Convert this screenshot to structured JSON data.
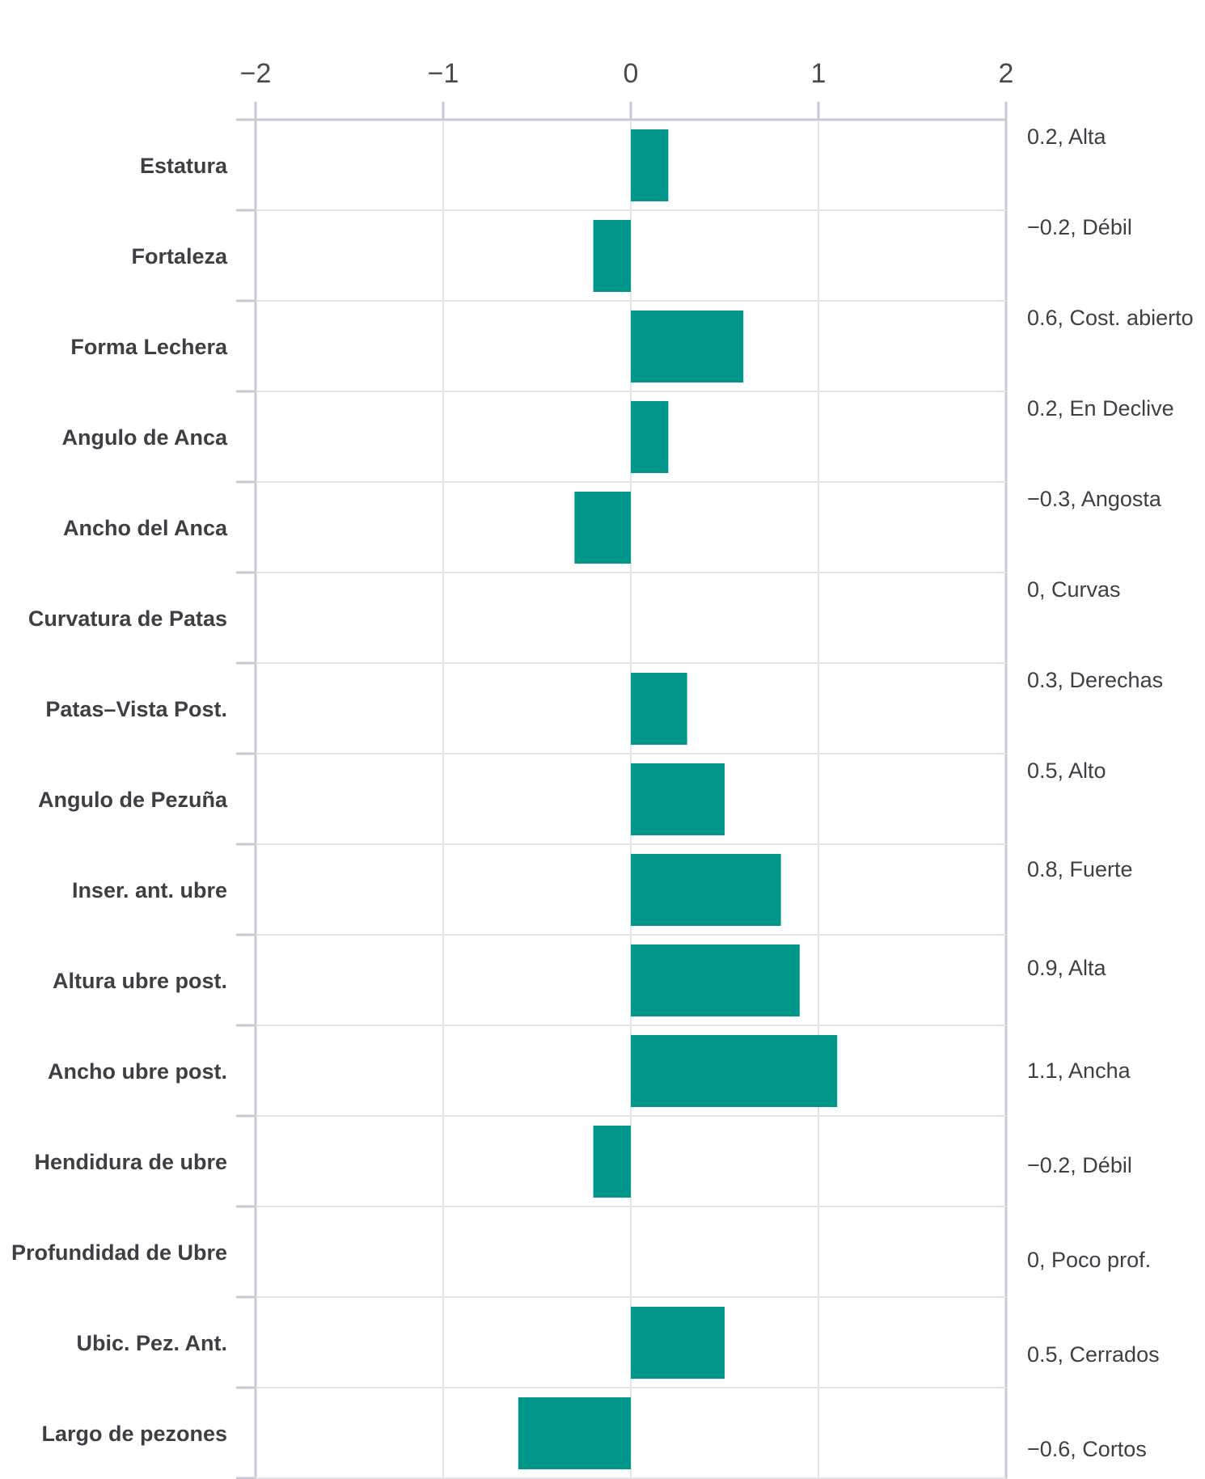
{
  "chart_data": {
    "type": "bar",
    "orientation": "horizontal",
    "title": "",
    "xlabel": "",
    "ylabel": "",
    "xlim": [
      -2,
      2
    ],
    "xticks": [
      -2,
      -1,
      0,
      1,
      2
    ],
    "xtick_labels": [
      "−2",
      "−1",
      "0",
      "1",
      "2"
    ],
    "grid": true,
    "bar_color": "#00968a",
    "categories": [
      "Estatura",
      "Fortaleza",
      "Forma Lechera",
      "Angulo de Anca",
      "Ancho del Anca",
      "Curvatura de Patas",
      "Patas–Vista Post.",
      "Angulo de Pezuña",
      "Inser. ant. ubre",
      "Altura ubre post.",
      "Ancho ubre post.",
      "Hendidura de ubre",
      "Profundidad de Ubre",
      "Ubic. Pez. Ant.",
      "Largo de pezones"
    ],
    "values": [
      0.2,
      -0.2,
      0.6,
      0.2,
      -0.3,
      0,
      0.3,
      0.5,
      0.8,
      0.9,
      1.1,
      -0.2,
      0,
      0.5,
      -0.6
    ],
    "value_labels": [
      "0.2, Alta",
      "−0.2, Débil",
      "0.6, Cost. abierto",
      "0.2, En Declive",
      "−0.3, Angosta",
      "0, Curvas",
      "0.3, Derechas",
      "0.5, Alto",
      "0.8, Fuerte",
      "0.9, Alta",
      "1.1, Ancha",
      "−0.2, Débil",
      "0, Poco prof.",
      "0.5, Cerrados",
      "−0.6, Cortos"
    ]
  }
}
